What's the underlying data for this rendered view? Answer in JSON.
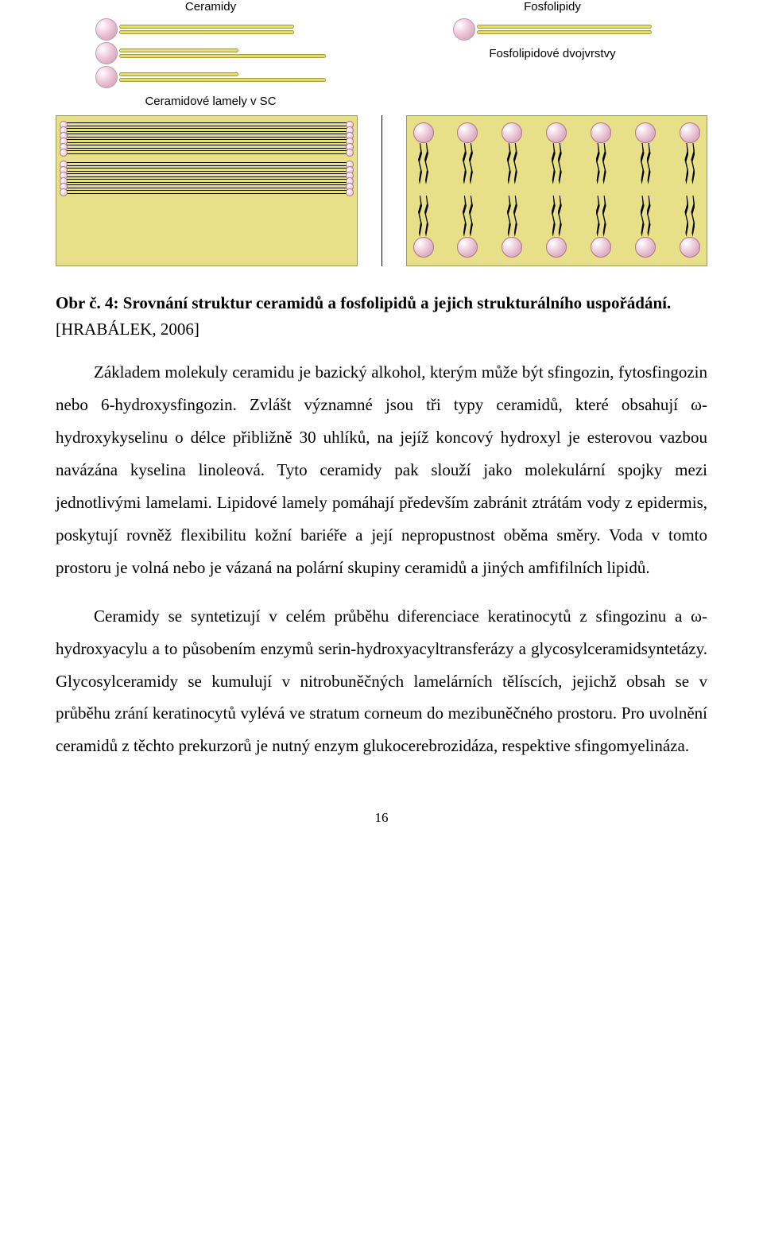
{
  "figure": {
    "labels": {
      "ceramidy": "Ceramidy",
      "fosfolipidy": "Fosfolipidy",
      "ceram_lamely": "Ceramidové lamely v SC",
      "fosfo_dvoj": "Fosfolipidové dvojvrstvy"
    },
    "colors": {
      "panel_bg": "#e7e088",
      "panel_border": "#9e9956",
      "head_fill": "#e4b8cc",
      "tail_fill": "#f2e88a"
    }
  },
  "caption": {
    "label": "Obr č. 4:",
    "text": "Srovnání struktur ceramidů a fosfolipidů a jejich strukturálního uspořádání.",
    "ref": "[HRABÁLEK, 2006]"
  },
  "paragraphs": {
    "p1": "Základem molekuly ceramidu je bazický alkohol, kterým může být sfingozin, fytosfingozin nebo 6-hydroxysfingozin. Zvlášt významné jsou tři typy ceramidů, které obsahují ω-hydroxykyselinu o délce přibližně 30 uhlíků, na jejíž koncový hydroxyl je esterovou vazbou navázána kyselina linoleová. Tyto ceramidy pak slouží jako molekulární spojky mezi jednotlivými lamelami. Lipidové lamely pomáhají především zabránit ztrátám vody z epidermis, poskytují rovněž flexibilitu kožní bariéře a její nepropustnost oběma směry. Voda v tomto prostoru je volná nebo je vázaná na polární skupiny ceramidů a jiných amfifilních lipidů.",
    "p2": "Ceramidy se syntetizují v celém průběhu diferenciace keratinocytů z sfingozinu a ω-hydroxyacylu a to působením enzymů serin-hydroxyacyltransferázy a glycosylceramidsyntetázy. Glycosylceramidy se kumulují v nitrobuněčných lamelárních tělíscích, jejichž obsah se v průběhu zrání keratinocytů vylévá ve stratum corneum do mezibuněčného prostoru. Pro uvolnění ceramidů z těchto prekurzorů je nutný enzym glukocerebrozidáza, respektive sfingomyelináza."
  },
  "page_number": "16"
}
